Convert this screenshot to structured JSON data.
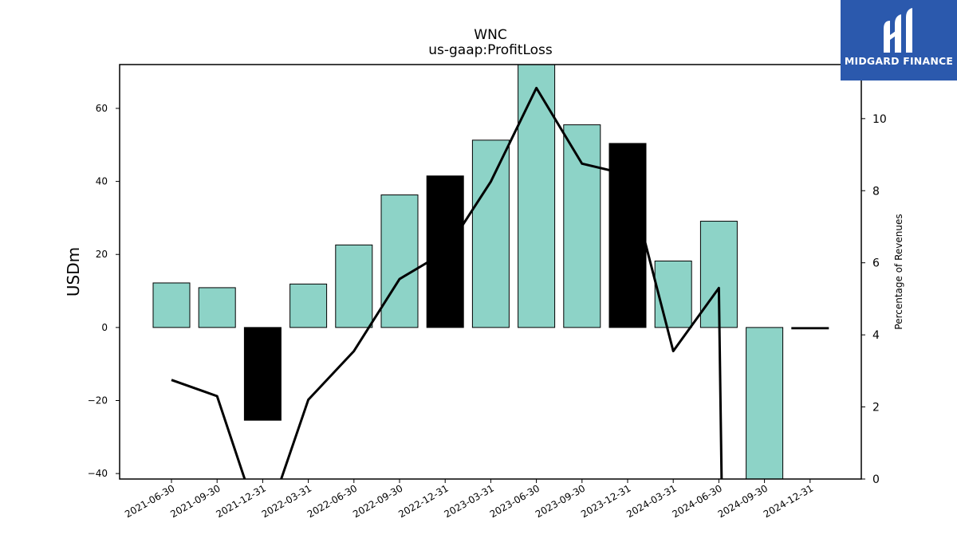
{
  "chart_data": {
    "type": "bar",
    "title": "WNC",
    "subtitle": "us-gaap:ProfitLoss",
    "ylabel": "USDm",
    "y2label": "Percentage of Revenues",
    "categories": [
      "2021-06-30",
      "2021-09-30",
      "2021-12-31",
      "2022-03-31",
      "2022-06-30",
      "2022-09-30",
      "2022-12-31",
      "2023-03-31",
      "2023-06-30",
      "2023-09-30",
      "2023-12-31",
      "2024-03-31",
      "2024-06-30",
      "2024-09-30",
      "2024-12-31"
    ],
    "series": [
      {
        "type": "bar",
        "axis": "left",
        "values": [
          12.2,
          10.9,
          -25.4,
          11.9,
          22.6,
          36.3,
          41.5,
          51.3,
          72.0,
          55.5,
          50.4,
          18.2,
          29.1,
          -41.5,
          -0.4
        ],
        "colors": [
          "#8dd3c7",
          "#8dd3c7",
          "#000000",
          "#8dd3c7",
          "#8dd3c7",
          "#8dd3c7",
          "#000000",
          "#8dd3c7",
          "#8dd3c7",
          "#8dd3c7",
          "#000000",
          "#8dd3c7",
          "#8dd3c7",
          "#8dd3c7",
          "#000000"
        ]
      },
      {
        "type": "line",
        "axis": "right",
        "values": [
          2.75,
          2.3,
          -1.5,
          2.2,
          3.55,
          5.55,
          6.3,
          8.25,
          10.85,
          8.75,
          8.45,
          3.55,
          5.3,
          null,
          null
        ],
        "color": "#000000"
      }
    ],
    "ylim": [
      -41.5,
      72.0
    ],
    "yticks": [
      -40,
      -20,
      0,
      20,
      40,
      60
    ],
    "y2lim": [
      0,
      11.5
    ],
    "y2ticks": [
      0,
      2,
      4,
      6,
      8,
      10
    ],
    "grid": false
  },
  "logo": {
    "text": "MIDGARD FINANCE",
    "background": "#2b59ad"
  }
}
